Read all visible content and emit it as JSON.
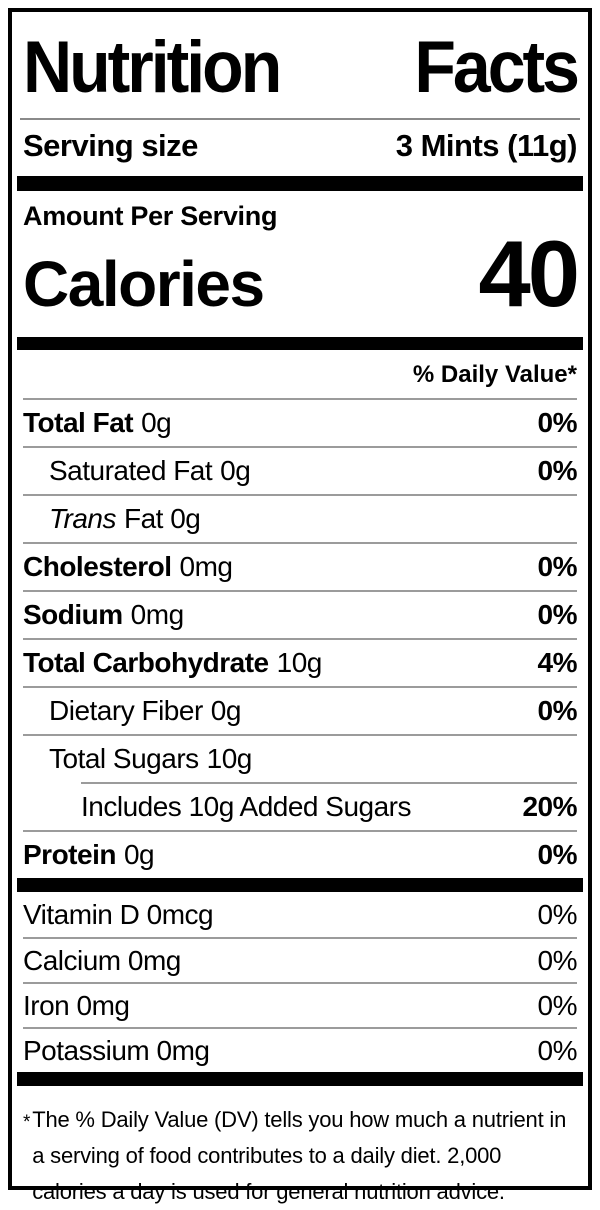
{
  "label": {
    "title": {
      "word1": "Nutrition",
      "word2": "Facts"
    },
    "serving_size": {
      "label": "Serving size",
      "value": "3 Mints (11g)"
    },
    "amount_per_serving": "Amount Per Serving",
    "calories": {
      "label": "Calories",
      "value": "40"
    },
    "daily_value_header": "% Daily Value*",
    "nutrients": [
      {
        "name": "Total Fat",
        "amount": "0g",
        "dv": "0%"
      },
      {
        "name": "Saturated Fat",
        "amount": "0g",
        "dv": "0%"
      },
      {
        "name": "Trans",
        "amount": "Fat 0g",
        "dv": ""
      },
      {
        "name": "Cholesterol",
        "amount": "0mg",
        "dv": "0%"
      },
      {
        "name": "Sodium",
        "amount": "0mg",
        "dv": "0%"
      },
      {
        "name": "Total Carbohydrate",
        "amount": "10g",
        "dv": "4%"
      },
      {
        "name": "Dietary Fiber",
        "amount": "0g",
        "dv": "0%"
      },
      {
        "name": "Total Sugars",
        "amount": "10g",
        "dv": ""
      },
      {
        "name": "Includes 10g Added Sugars",
        "amount": "",
        "dv": "20%"
      },
      {
        "name": "Protein",
        "amount": "0g",
        "dv": "0%"
      }
    ],
    "micronutrients": [
      {
        "name": "Vitamin D 0mcg",
        "dv": "0%"
      },
      {
        "name": "Calcium 0mg",
        "dv": "0%"
      },
      {
        "name": "Iron 0mg",
        "dv": "0%"
      },
      {
        "name": "Potassium 0mg",
        "dv": "0%"
      }
    ],
    "footnote": {
      "marker": "*",
      "text": "The % Daily Value (DV) tells you how much a nutrient in a serving of food contributes to a daily diet. 2,000 calories a day is used for general nutrition advice."
    },
    "colors": {
      "text": "#000000",
      "background": "#ffffff",
      "border": "#000000",
      "bar": "#000000",
      "divider": "#9b9b9b"
    }
  }
}
